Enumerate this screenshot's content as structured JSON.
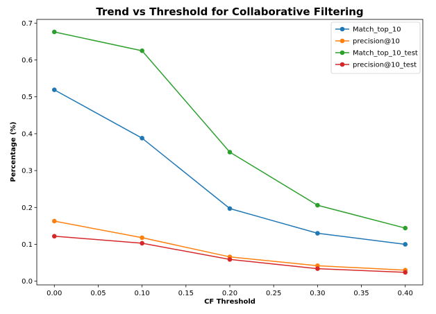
{
  "chart_data": {
    "type": "line",
    "title": "Trend vs Threshold for Collaborative Filtering",
    "xlabel": "CF Threshold",
    "ylabel": "Percentage (%)",
    "x": [
      0.0,
      0.1,
      0.2,
      0.3,
      0.4
    ],
    "xlim": [
      -0.02,
      0.42
    ],
    "ylim": [
      -0.01,
      0.71
    ],
    "xticks": [
      0.0,
      0.05,
      0.1,
      0.15,
      0.2,
      0.25,
      0.3,
      0.35,
      0.4
    ],
    "xtick_labels": [
      "0.00",
      "0.05",
      "0.10",
      "0.15",
      "0.20",
      "0.25",
      "0.30",
      "0.35",
      "0.40"
    ],
    "yticks": [
      0.0,
      0.1,
      0.2,
      0.3,
      0.4,
      0.5,
      0.6,
      0.7
    ],
    "ytick_labels": [
      "0.0",
      "0.1",
      "0.2",
      "0.3",
      "0.4",
      "0.5",
      "0.6",
      "0.7"
    ],
    "grid": false,
    "legend_position": "top-right",
    "series": [
      {
        "name": "Match_top_10",
        "color": "#1f77b4",
        "marker": "circle",
        "values": [
          0.519,
          0.388,
          0.197,
          0.13,
          0.1
        ]
      },
      {
        "name": "precision@10",
        "color": "#ff7f0e",
        "marker": "circle",
        "values": [
          0.163,
          0.118,
          0.066,
          0.042,
          0.03
        ]
      },
      {
        "name": "Match_top_10_test",
        "color": "#2ca02c",
        "marker": "circle",
        "values": [
          0.676,
          0.625,
          0.35,
          0.206,
          0.144
        ]
      },
      {
        "name": "precision@10_test",
        "color": "#d62728",
        "marker": "circle",
        "values": [
          0.122,
          0.103,
          0.059,
          0.034,
          0.024
        ]
      }
    ]
  }
}
